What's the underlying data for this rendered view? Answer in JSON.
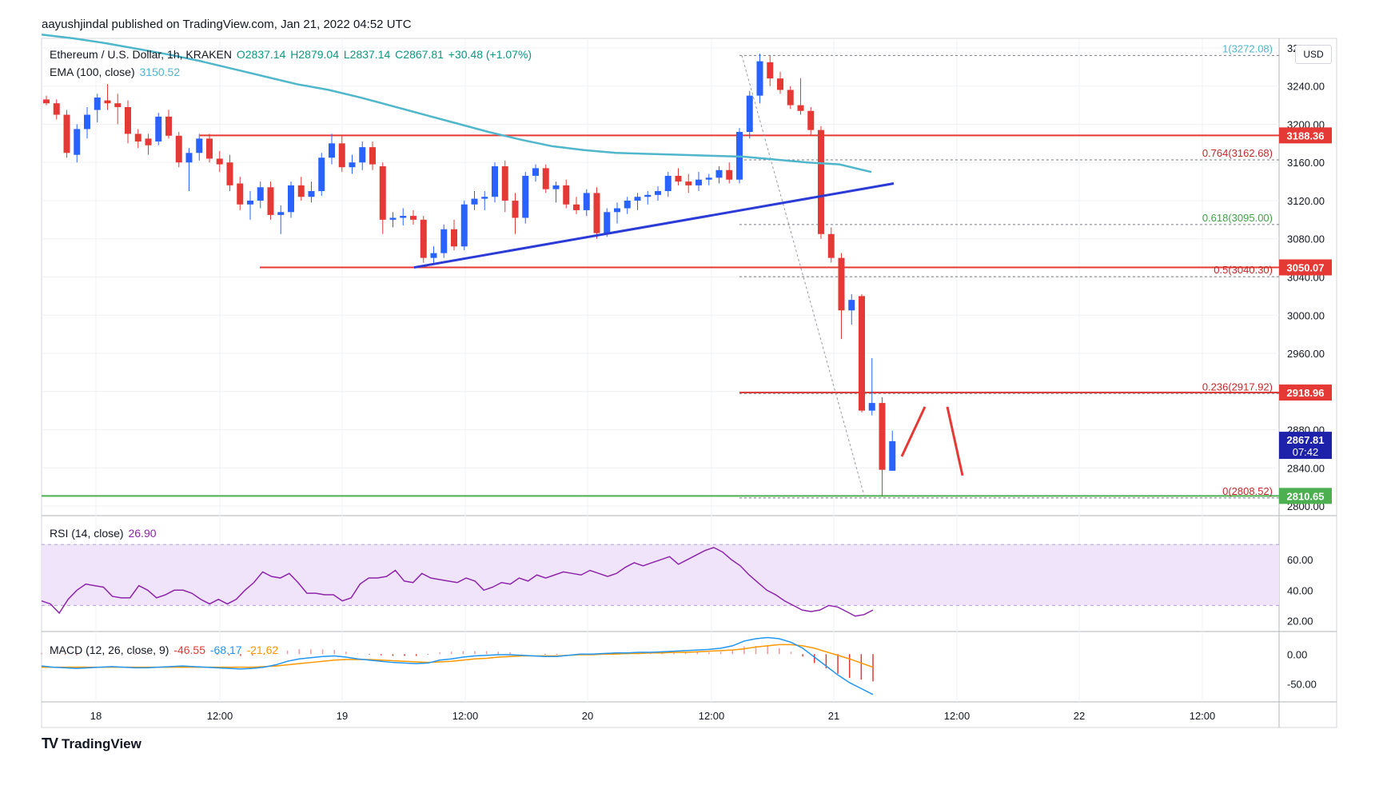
{
  "header": {
    "published": "aayushjindal published on TradingView.com, Jan 21, 2022 04:52 UTC"
  },
  "legend": {
    "symbol": "Ethereum / U.S. Dollar, 1h, KRAKEN",
    "open": "O2837.14",
    "high": "H2879.04",
    "low": "L2837.14",
    "close": "C2867.81",
    "change": "+30.48 (+1.07%)",
    "ema_label": "EMA (100, close)",
    "ema_value": "3150.52",
    "rsi_label": "RSI (14, close)",
    "rsi_value": "26.90",
    "macd_label": "MACD (12, 26, close, 9)",
    "macd_hist": "-46.55",
    "macd_line": "-68.17",
    "macd_signal": "-21.62"
  },
  "currency_button": "USD",
  "brand": "TradingView",
  "colors": {
    "up": "#2962ff",
    "down": "#e53935",
    "ema": "#4fb6cc",
    "trend": "#2b3bd6",
    "support": "#4caf50",
    "resistance": "#e53935",
    "rsi_band": "#efe4fa",
    "rsi_line": "#8e24aa",
    "macd_line": "#2196f3",
    "macd_signal": "#ff9800"
  },
  "chart_data": {
    "type": "candlestick",
    "title": "Ethereum / U.S. Dollar, 1h, KRAKEN",
    "x_ticks": [
      "18",
      "12:00",
      "19",
      "12:00",
      "20",
      "12:00",
      "21",
      "12:00",
      "22",
      "12:00"
    ],
    "y_ticks": [
      "2800.00",
      "2840.00",
      "2880.00",
      "2920.00",
      "2960.00",
      "3000.00",
      "3040.00",
      "3080.00",
      "3120.00",
      "3160.00",
      "3200.00",
      "3240.00",
      "3280.00"
    ],
    "ylim": [
      2790,
      3290
    ],
    "candles": [
      [
        3226,
        3230,
        3220,
        3222
      ],
      [
        3222,
        3226,
        3205,
        3210
      ],
      [
        3210,
        3215,
        3165,
        3170
      ],
      [
        3168,
        3200,
        3160,
        3195
      ],
      [
        3195,
        3218,
        3185,
        3210
      ],
      [
        3215,
        3232,
        3202,
        3228
      ],
      [
        3225,
        3242,
        3215,
        3222
      ],
      [
        3222,
        3232,
        3200,
        3218
      ],
      [
        3218,
        3225,
        3180,
        3190
      ],
      [
        3190,
        3195,
        3175,
        3182
      ],
      [
        3185,
        3190,
        3168,
        3178
      ],
      [
        3182,
        3212,
        3178,
        3208
      ],
      [
        3208,
        3215,
        3185,
        3188
      ],
      [
        3188,
        3192,
        3155,
        3160
      ],
      [
        3160,
        3175,
        3130,
        3170
      ],
      [
        3170,
        3190,
        3162,
        3185
      ],
      [
        3185,
        3190,
        3160,
        3164
      ],
      [
        3164,
        3172,
        3150,
        3158
      ],
      [
        3160,
        3168,
        3130,
        3136
      ],
      [
        3138,
        3145,
        3110,
        3116
      ],
      [
        3116,
        3130,
        3100,
        3120
      ],
      [
        3120,
        3140,
        3112,
        3134
      ],
      [
        3134,
        3140,
        3100,
        3105
      ],
      [
        3105,
        3115,
        3085,
        3108
      ],
      [
        3108,
        3140,
        3102,
        3136
      ],
      [
        3136,
        3145,
        3120,
        3124
      ],
      [
        3124,
        3140,
        3118,
        3130
      ],
      [
        3130,
        3170,
        3125,
        3165
      ],
      [
        3165,
        3190,
        3158,
        3180
      ],
      [
        3180,
        3188,
        3150,
        3155
      ],
      [
        3155,
        3168,
        3148,
        3160
      ],
      [
        3160,
        3182,
        3152,
        3176
      ],
      [
        3176,
        3182,
        3152,
        3158
      ],
      [
        3156,
        3160,
        3085,
        3100
      ],
      [
        3100,
        3108,
        3092,
        3102
      ],
      [
        3102,
        3112,
        3094,
        3104
      ],
      [
        3104,
        3110,
        3095,
        3100
      ],
      [
        3100,
        3104,
        3055,
        3060
      ],
      [
        3060,
        3072,
        3055,
        3065
      ],
      [
        3065,
        3095,
        3060,
        3090
      ],
      [
        3090,
        3100,
        3068,
        3072
      ],
      [
        3072,
        3120,
        3068,
        3116
      ],
      [
        3116,
        3130,
        3110,
        3122
      ],
      [
        3122,
        3130,
        3110,
        3124
      ],
      [
        3124,
        3160,
        3118,
        3156
      ],
      [
        3156,
        3162,
        3108,
        3120
      ],
      [
        3120,
        3128,
        3085,
        3102
      ],
      [
        3102,
        3150,
        3096,
        3146
      ],
      [
        3146,
        3158,
        3140,
        3154
      ],
      [
        3154,
        3158,
        3128,
        3132
      ],
      [
        3132,
        3140,
        3118,
        3136
      ],
      [
        3136,
        3142,
        3112,
        3116
      ],
      [
        3116,
        3124,
        3106,
        3110
      ],
      [
        3110,
        3132,
        3104,
        3128
      ],
      [
        3128,
        3134,
        3080,
        3086
      ],
      [
        3086,
        3112,
        3082,
        3108
      ],
      [
        3108,
        3118,
        3096,
        3112
      ],
      [
        3112,
        3124,
        3106,
        3120
      ],
      [
        3120,
        3128,
        3110,
        3124
      ],
      [
        3124,
        3130,
        3116,
        3126
      ],
      [
        3126,
        3135,
        3120,
        3130
      ],
      [
        3130,
        3150,
        3124,
        3146
      ],
      [
        3146,
        3154,
        3136,
        3140
      ],
      [
        3140,
        3148,
        3128,
        3136
      ],
      [
        3136,
        3150,
        3130,
        3142
      ],
      [
        3142,
        3148,
        3136,
        3144
      ],
      [
        3144,
        3156,
        3138,
        3152
      ],
      [
        3152,
        3160,
        3138,
        3142
      ],
      [
        3142,
        3196,
        3138,
        3192
      ],
      [
        3192,
        3235,
        3185,
        3230
      ],
      [
        3230,
        3274,
        3222,
        3266
      ],
      [
        3265,
        3272,
        3240,
        3248
      ],
      [
        3248,
        3255,
        3232,
        3236
      ],
      [
        3236,
        3240,
        3216,
        3220
      ],
      [
        3220,
        3248,
        3210,
        3214
      ],
      [
        3214,
        3218,
        3188,
        3194
      ],
      [
        3194,
        3198,
        3080,
        3085
      ],
      [
        3085,
        3092,
        3055,
        3060
      ],
      [
        3060,
        3065,
        2975,
        3005
      ],
      [
        3005,
        3022,
        2990,
        3016
      ],
      [
        3020,
        3022,
        2898,
        2900
      ],
      [
        2900,
        2955,
        2895,
        2908
      ],
      [
        2908,
        2914,
        2810,
        2838
      ],
      [
        2837,
        2879,
        2837,
        2868
      ]
    ],
    "ema_100": [
      3294,
      3290,
      3285,
      3279,
      3273,
      3266,
      3258,
      3250,
      3242,
      3236,
      3228,
      3219,
      3210,
      3201,
      3192,
      3184,
      3177,
      3173,
      3170,
      3169,
      3168,
      3167,
      3166,
      3163,
      3160,
      3158,
      3150
    ],
    "trendline": {
      "from": 3050,
      "to": 3138
    },
    "levels": [
      {
        "label": "3188.36",
        "value": 3188.36,
        "kind": "resistance"
      },
      {
        "label": "3050.07",
        "value": 3050.07,
        "kind": "resistance"
      },
      {
        "label": "2918.96",
        "value": 2918.96,
        "kind": "resistance"
      },
      {
        "label": "2810.65",
        "value": 2810.65,
        "kind": "support"
      }
    ],
    "fib_levels": [
      {
        "label": "1(3272.08)",
        "value": 3272.08
      },
      {
        "label": "0.764(3162.68)",
        "value": 3162.68
      },
      {
        "label": "0.618(3095.00)",
        "value": 3095.0
      },
      {
        "label": "0.5(3040.30)",
        "value": 3040.3
      },
      {
        "label": "0.236(2917.92)",
        "value": 2917.92
      },
      {
        "label": "0(2808.52)",
        "value": 2808.52
      }
    ],
    "last_price": {
      "value": 2867.81,
      "label": "2867.81",
      "countdown": "07:42"
    },
    "rsi": {
      "ylim": [
        15,
        80
      ],
      "band": [
        30,
        70
      ],
      "y_ticks": [
        "20.00",
        "40.00",
        "60.00"
      ],
      "values": [
        33,
        31,
        25,
        34,
        40,
        44,
        43,
        42,
        36,
        35,
        35,
        43,
        40,
        35,
        37,
        40,
        40,
        38,
        34,
        31,
        34,
        31,
        34,
        40,
        45,
        52,
        49,
        48,
        51,
        45,
        38,
        38,
        37,
        37,
        33,
        35,
        44,
        48,
        48,
        49,
        53,
        46,
        45,
        51,
        48,
        47,
        46,
        45,
        48,
        46,
        40,
        42,
        45,
        44,
        48,
        46,
        50,
        48,
        50,
        52,
        51,
        50,
        53,
        51,
        49,
        51,
        55,
        58,
        56,
        58,
        60,
        62,
        57,
        60,
        63,
        66,
        68,
        65,
        60,
        56,
        50,
        45,
        40,
        37,
        33,
        30,
        27,
        26,
        27,
        30,
        29,
        26,
        23,
        24,
        27
      ]
    },
    "macd": {
      "ylim": [
        -75,
        30
      ],
      "y_ticks": [
        "0.00",
        "-50.00"
      ],
      "macd": [
        -20,
        -22,
        -23,
        -24,
        -23,
        -22,
        -21,
        -22,
        -23,
        -23,
        -22,
        -21,
        -20,
        -21,
        -22,
        -23,
        -24,
        -25,
        -24,
        -22,
        -18,
        -12,
        -8,
        -6,
        -4,
        -3,
        -5,
        -8,
        -10,
        -12,
        -14,
        -15,
        -16,
        -15,
        -10,
        -8,
        -5,
        -3,
        -2,
        -1,
        -1,
        -2,
        -3,
        -4,
        -4,
        -2,
        0,
        0,
        1,
        2,
        2,
        3,
        3,
        4,
        5,
        6,
        7,
        8,
        10,
        14,
        22,
        26,
        28,
        26,
        20,
        10,
        -5,
        -20,
        -35,
        -48,
        -58,
        -68
      ],
      "signal": [
        -22,
        -22,
        -22,
        -22,
        -22,
        -22,
        -22,
        -22,
        -22,
        -22,
        -22,
        -22,
        -22,
        -22,
        -22,
        -22,
        -22,
        -22,
        -22,
        -21,
        -20,
        -18,
        -16,
        -14,
        -12,
        -10,
        -9,
        -9,
        -9,
        -10,
        -11,
        -12,
        -13,
        -14,
        -13,
        -12,
        -10,
        -8,
        -7,
        -5,
        -4,
        -3,
        -3,
        -3,
        -3,
        -2,
        -1,
        -1,
        0,
        0,
        1,
        1,
        2,
        2,
        3,
        3,
        4,
        5,
        6,
        7,
        9,
        12,
        14,
        16,
        16,
        14,
        10,
        4,
        -2,
        -8,
        -15,
        -22
      ]
    }
  }
}
